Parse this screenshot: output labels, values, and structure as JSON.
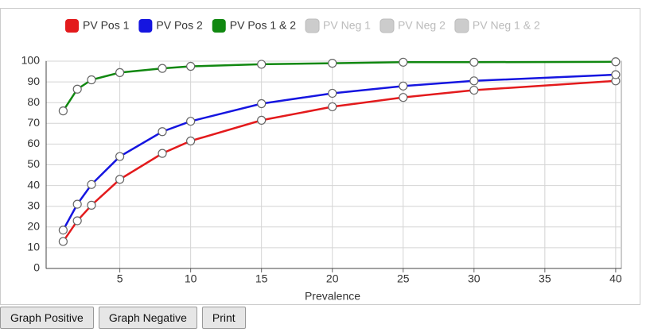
{
  "chart_data": {
    "type": "line",
    "x_label": "Prevalence",
    "x": [
      1,
      2,
      3,
      5,
      8,
      10,
      15,
      20,
      25,
      30,
      40
    ],
    "series": [
      {
        "name": "PV Pos 1",
        "color": "#e31a1c",
        "visible": true,
        "values": [
          13,
          23,
          30.5,
          43,
          55.5,
          61.5,
          71.5,
          78,
          82.5,
          86,
          90.5
        ]
      },
      {
        "name": "PV Pos 2",
        "color": "#1515e0",
        "visible": true,
        "values": [
          18.5,
          31,
          40.5,
          54,
          66,
          71,
          79.5,
          84.5,
          88,
          90.5,
          93.5
        ]
      },
      {
        "name": "PV Pos 1 & 2",
        "color": "#118811",
        "visible": true,
        "values": [
          76,
          86.5,
          91,
          94.5,
          96.5,
          97.5,
          98.5,
          99,
          99.5,
          99.5,
          99.7
        ]
      },
      {
        "name": "PV Neg 1",
        "color": "#cccccc",
        "visible": false
      },
      {
        "name": "PV Neg 2",
        "color": "#cccccc",
        "visible": false
      },
      {
        "name": "PV Neg 1 & 2",
        "color": "#cccccc",
        "visible": false
      }
    ],
    "xlim": [
      -0.2,
      40.4
    ],
    "xticks": [
      5,
      10,
      15,
      20,
      25,
      30,
      35,
      40
    ],
    "ylim": [
      0,
      100
    ],
    "yticks": [
      0,
      10,
      20,
      30,
      40,
      50,
      60,
      70,
      80,
      90,
      100
    ],
    "grid": true
  },
  "buttons": [
    "Graph Positive",
    "Graph Negative",
    "Print"
  ]
}
